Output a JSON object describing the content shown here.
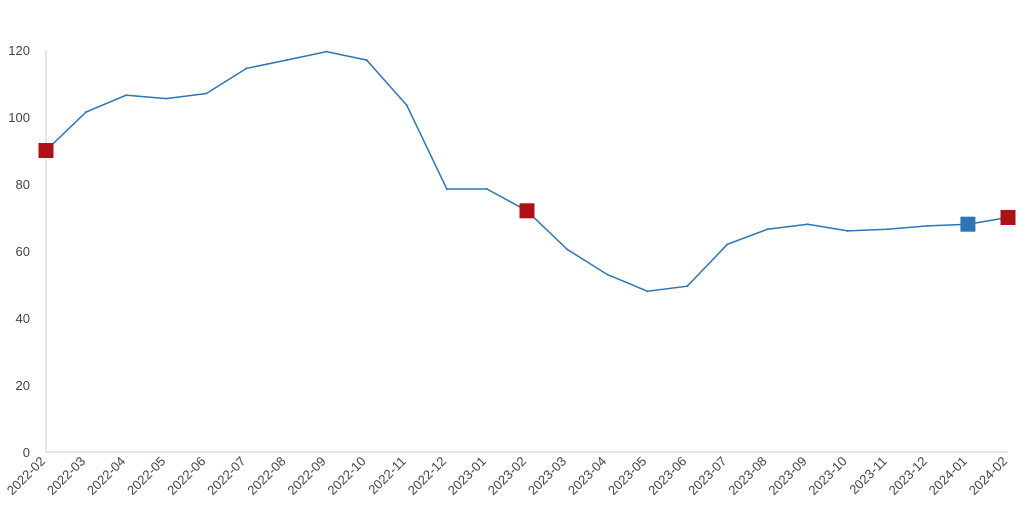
{
  "chart_data": {
    "type": "line",
    "title": "",
    "xlabel": "",
    "ylabel": "",
    "ylim": [
      0,
      120
    ],
    "y_ticks": [
      0,
      20,
      40,
      60,
      80,
      100,
      120
    ],
    "grid": false,
    "x": [
      "2022-02",
      "2022-03",
      "2022-04",
      "2022-05",
      "2022-06",
      "2022-07",
      "2022-08",
      "2022-09",
      "2022-10",
      "2022-11",
      "2022-12",
      "2023-01",
      "2023-02",
      "2023-03",
      "2023-04",
      "2023-05",
      "2023-06",
      "2023-07",
      "2023-08",
      "2023-09",
      "2023-10",
      "2023-11",
      "2023-12",
      "2024-01",
      "2024-02"
    ],
    "series": [
      {
        "values": [
          90,
          101.5,
          106.5,
          105.5,
          107,
          114.5,
          117,
          119.5,
          117,
          103.5,
          78.5,
          78.5,
          72,
          60.5,
          53,
          48,
          49.5,
          62,
          66.5,
          68,
          66,
          66.5,
          67.5,
          68,
          70
        ],
        "color": "#2e75b6"
      }
    ],
    "markers": [
      {
        "x": "2022-02",
        "y": 90,
        "color": "#b01116"
      },
      {
        "x": "2023-02",
        "y": 72,
        "color": "#b01116"
      },
      {
        "x": "2024-01",
        "y": 68,
        "color": "#2e75b6"
      },
      {
        "x": "2024-02",
        "y": 70,
        "color": "#b01116"
      }
    ]
  }
}
